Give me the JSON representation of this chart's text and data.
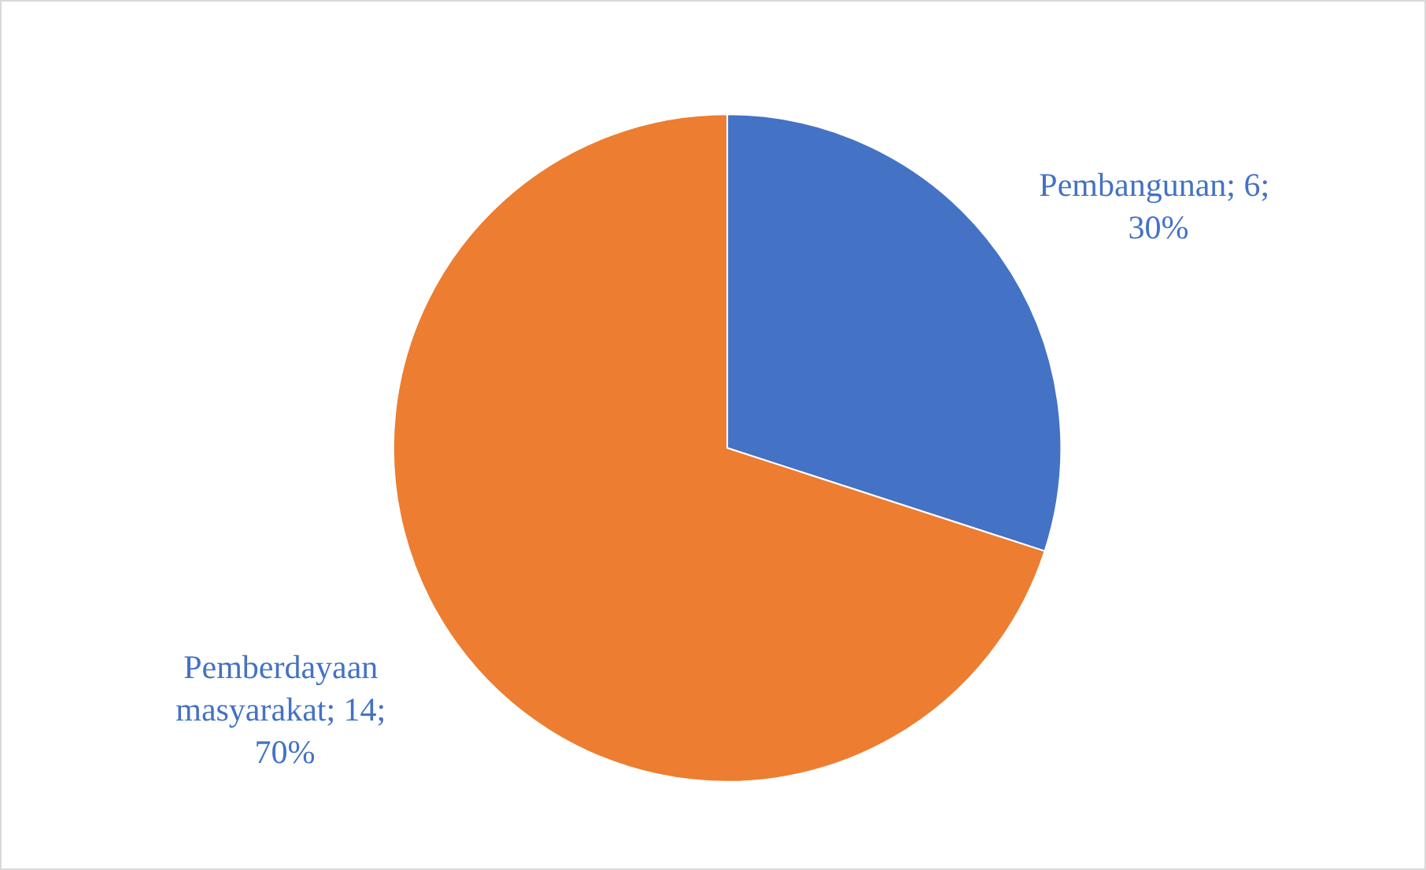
{
  "chart_data": {
    "type": "pie",
    "categories": [
      "Pembangunan",
      "Pemberdayaan masyarakat"
    ],
    "values": [
      6,
      14
    ],
    "colors": [
      "#4472c4",
      "#ed7d31"
    ],
    "value_labels": [
      "6; 30%",
      "14; 70%"
    ],
    "legend": false
  }
}
